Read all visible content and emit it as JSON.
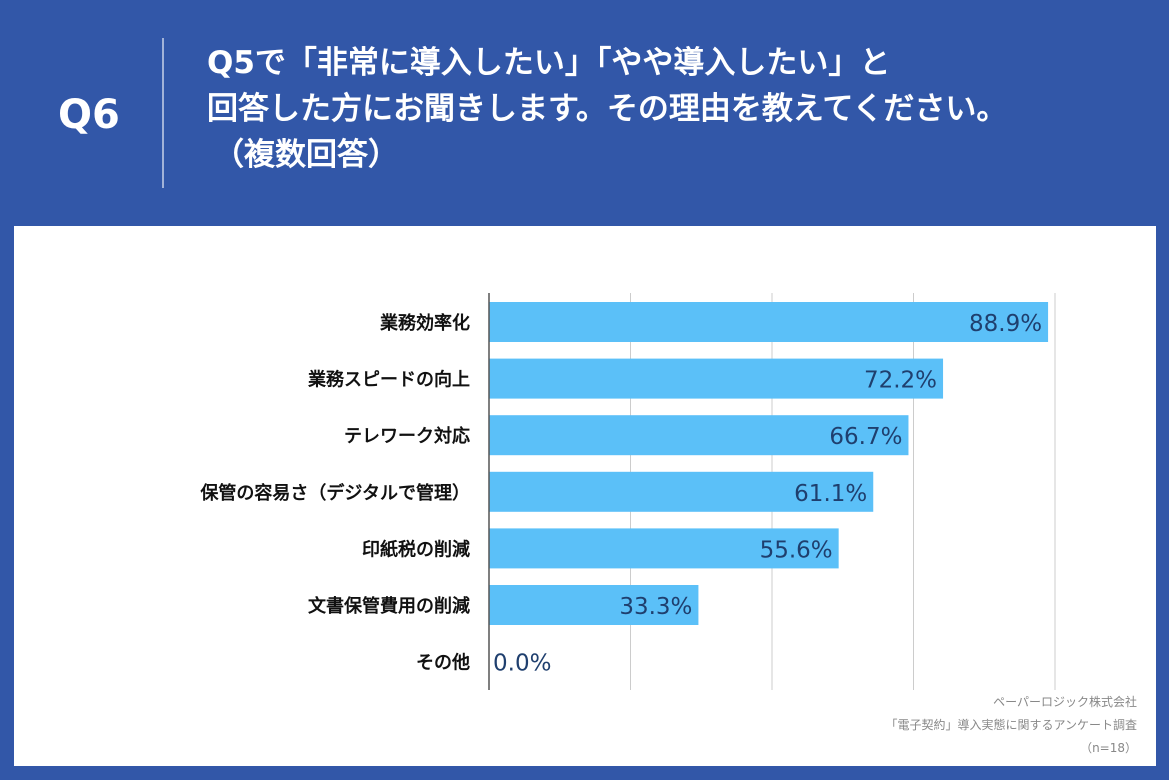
{
  "header": {
    "question_number": "Q6",
    "title_lines": [
      "Q5で「非常に導入したい」「やや導入したい」と",
      "回答した方にお聞きします。その理由を教えてください。",
      "（複数回答）"
    ]
  },
  "colors": {
    "background": "#3257a8",
    "bar": "#5bc0f8",
    "value_label": "#1f3f6e",
    "grid": "#cccccc"
  },
  "chart_data": {
    "type": "bar",
    "orientation": "horizontal",
    "categories": [
      "業務効率化",
      "業務スピードの向上",
      "テレワーク対応",
      "保管の容易さ（デジタルで管理）",
      "印紙税の削減",
      "文書保管費用の削減",
      "その他"
    ],
    "values": [
      88.9,
      72.2,
      66.7,
      61.1,
      55.6,
      33.3,
      0.0
    ],
    "value_labels": [
      "88.9%",
      "72.2%",
      "66.7%",
      "61.1%",
      "55.6%",
      "33.3%",
      "0.0%"
    ],
    "xlim": [
      0,
      90
    ],
    "grid": true,
    "unit": "%"
  },
  "footer": {
    "company": "ペーパーロジック株式会社",
    "survey": "「電子契約」導入実態に関するアンケート調査",
    "sample": "（n=18）"
  }
}
